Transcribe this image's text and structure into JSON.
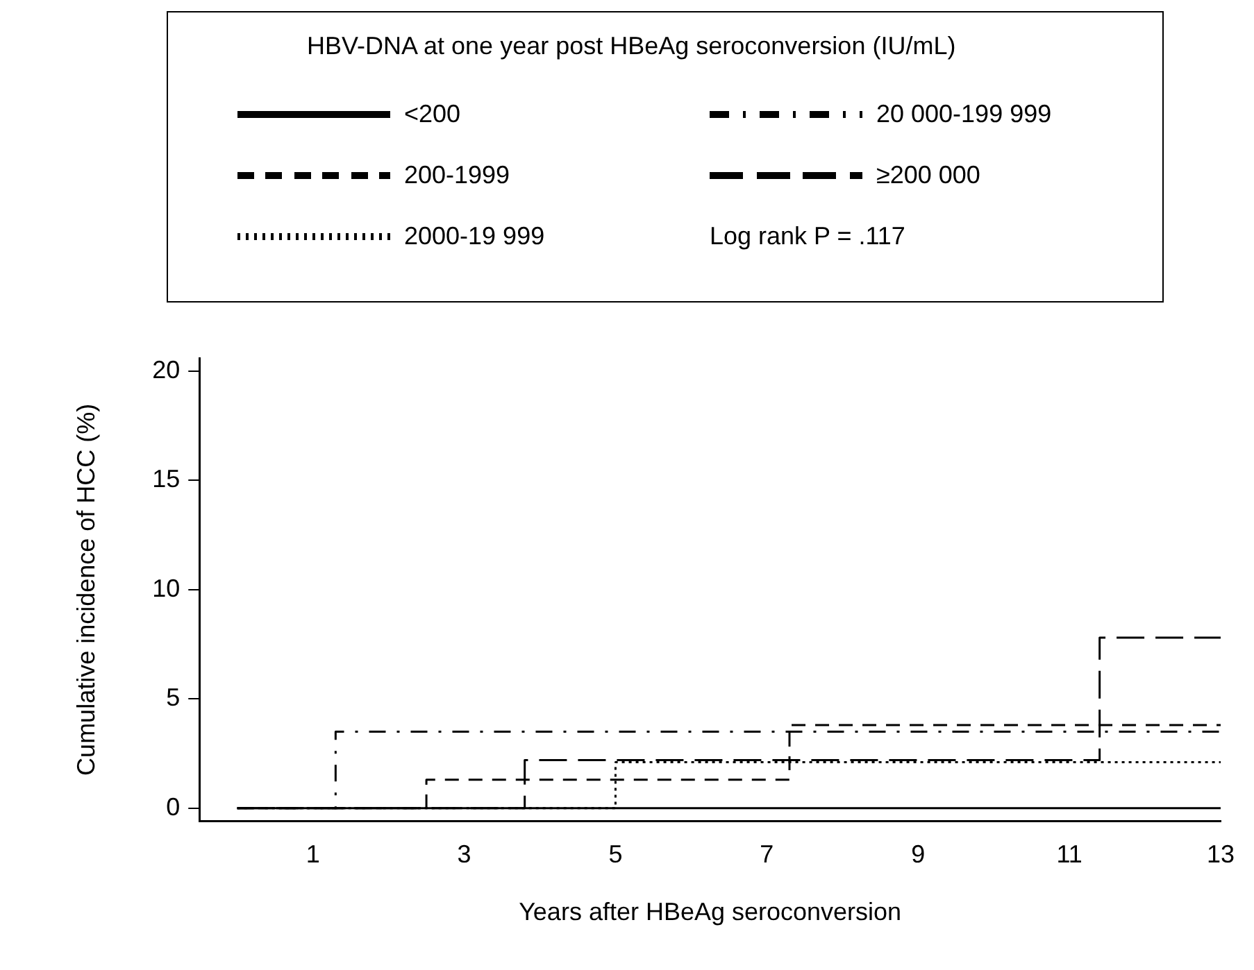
{
  "chart_data": {
    "type": "step",
    "legend_title": "HBV-DNA at one year post HBeAg seroconversion (IU/mL)",
    "xlabel": "Years after HBeAg seroconversion",
    "ylabel": "Cumulative incidence of HCC (%)",
    "xlim": [
      -0.5,
      13
    ],
    "xticks": [
      1,
      3,
      5,
      7,
      9,
      11,
      13
    ],
    "ylim": [
      -0.6,
      20.6
    ],
    "yticks": [
      0,
      5,
      10,
      15,
      20
    ],
    "grid": false,
    "legend": "top",
    "series": [
      {
        "name": "<200",
        "color": "#000000",
        "line_style": "solid",
        "x": [
          0,
          13
        ],
        "values": [
          0,
          0
        ]
      },
      {
        "name": "200-1999",
        "color": "#000000",
        "line_style": "dashed",
        "x": [
          0,
          2.5,
          7.3,
          13
        ],
        "values": [
          0,
          1.3,
          3.8,
          3.8
        ]
      },
      {
        "name": "2000-19 999",
        "color": "#000000",
        "line_style": "dotted",
        "x": [
          0,
          5,
          13
        ],
        "values": [
          0,
          2.1,
          2.1
        ]
      },
      {
        "name": "20 000-199 999",
        "color": "#000000",
        "line_style": "dashed",
        "x": [
          0,
          1.3,
          13
        ],
        "values": [
          0,
          3.5,
          3.5
        ]
      },
      {
        "name": "≥200 000",
        "color": "#000000",
        "line_style": "dashed",
        "x": [
          0,
          3.8,
          11.4,
          13
        ],
        "values": [
          0,
          2.2,
          7.8,
          7.8
        ]
      }
    ],
    "annotations": [
      "Log rank P = .117"
    ]
  }
}
